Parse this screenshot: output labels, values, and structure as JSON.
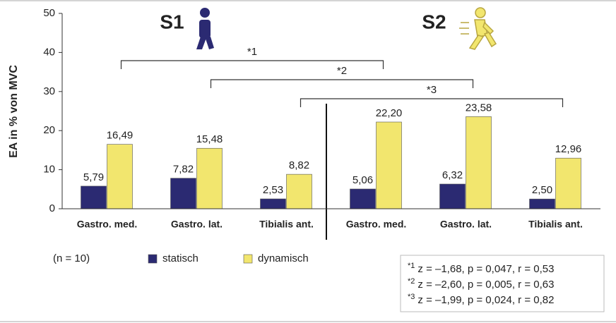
{
  "chart_data": {
    "type": "bar",
    "y_label": "EA in % von MVC",
    "categories": [
      "Gastro. med.",
      "Gastro. lat.",
      "Tibialis ant.",
      "Gastro. med.",
      "Gastro. lat.",
      "Tibialis ant."
    ],
    "series": [
      {
        "name": "statisch",
        "color": "#2b2a72",
        "values": [
          5.79,
          7.82,
          2.53,
          5.06,
          6.32,
          2.5
        ],
        "value_labels": [
          "5,79",
          "7,82",
          "2,53",
          "5,06",
          "6,32",
          "2,50"
        ]
      },
      {
        "name": "dynamisch",
        "color": "#f2e66e",
        "values": [
          16.49,
          15.48,
          8.82,
          22.2,
          23.58,
          12.96
        ],
        "value_labels": [
          "16,49",
          "15,48",
          "8,82",
          "22,20",
          "23,58",
          "12,96"
        ]
      }
    ],
    "ylim": [
      0,
      50
    ],
    "yticks": [
      0,
      10,
      20,
      30,
      40,
      50
    ],
    "groups": [
      "S1",
      "S2"
    ],
    "brackets": [
      {
        "label": "*1",
        "from": 0,
        "to": 3
      },
      {
        "label": "*2",
        "from": 1,
        "to": 4
      },
      {
        "label": "*3",
        "from": 2,
        "to": 5
      }
    ],
    "note": "(n = 10)",
    "stats": [
      {
        "marker": "*1",
        "text": "z = –1,68, p = 0,047, r = 0,53"
      },
      {
        "marker": "*2",
        "text": "z = –2,60, p = 0,005, r = 0,63"
      },
      {
        "marker": "*3",
        "text": "z = –1,99, p = 0,024, r = 0,82"
      }
    ]
  }
}
